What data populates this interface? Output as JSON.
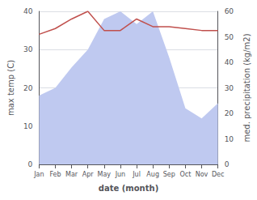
{
  "chart_data": {
    "type": "line",
    "xlabel": "date (month)",
    "ylabel": "max temp (C)",
    "y2label": "med. precipitation (kg/m2)",
    "categories": [
      "Jan",
      "Feb",
      "Mar",
      "Apr",
      "May",
      "Jun",
      "Jul",
      "Aug",
      "Sep",
      "Oct",
      "Nov",
      "Dec"
    ],
    "series": [
      {
        "type": "area",
        "axis": "y2",
        "color": "#bfc9f0",
        "values": [
          27,
          30,
          38,
          45,
          57,
          60,
          55,
          60,
          42,
          22,
          18,
          24
        ]
      },
      {
        "type": "line",
        "color": "#c0504d",
        "values": [
          34,
          35.5,
          38,
          40,
          35,
          35,
          38,
          36,
          36,
          35.5,
          35,
          35
        ]
      }
    ],
    "ylim": [
      0,
      40
    ],
    "yticks": [
      0,
      10,
      20,
      30,
      40
    ],
    "y2lim": [
      0,
      60
    ],
    "y2ticks": [
      0,
      10,
      20,
      30,
      40,
      50,
      60
    ],
    "grid": true
  }
}
